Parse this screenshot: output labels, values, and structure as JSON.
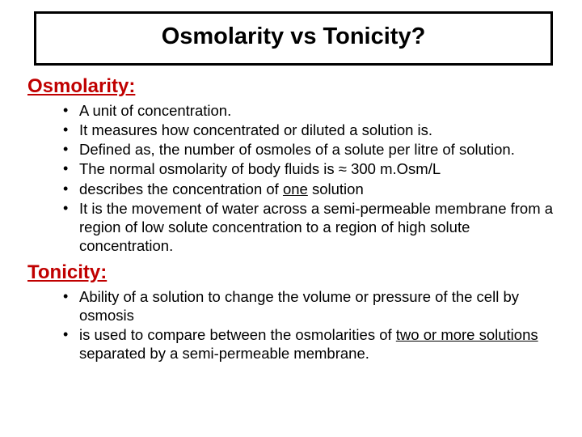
{
  "title": "Osmolarity vs Tonicity?",
  "colors": {
    "heading": "#c00000",
    "text": "#000000",
    "border": "#000000",
    "background": "#ffffff"
  },
  "typography": {
    "title_fontsize": 29,
    "heading_fontsize": 24,
    "body_fontsize": 18.5,
    "font_family": "Arial"
  },
  "sections": [
    {
      "heading": "Osmolarity:",
      "bullets": [
        "A unit of concentration.",
        " It measures how concentrated or diluted a solution is.",
        "Defined as, the number of osmoles of a solute per litre of solution.",
        "The normal osmolarity of body fluids is ≈ 300 m.Osm/L",
        "describes the concentration of <span class=\"u\">one</span> solution",
        "  It is the movement of water across a semi-permeable membrane from a region of low solute concentration to a region of high solute concentration."
      ]
    },
    {
      "heading": "Tonicity:",
      "bullets": [
        "Ability of a solution to change the volume or pressure of the cell by osmosis",
        "is used to compare between the osmolarities of <span class=\"u\">two or more solutions</span>   separated by a semi-permeable membrane."
      ]
    }
  ]
}
